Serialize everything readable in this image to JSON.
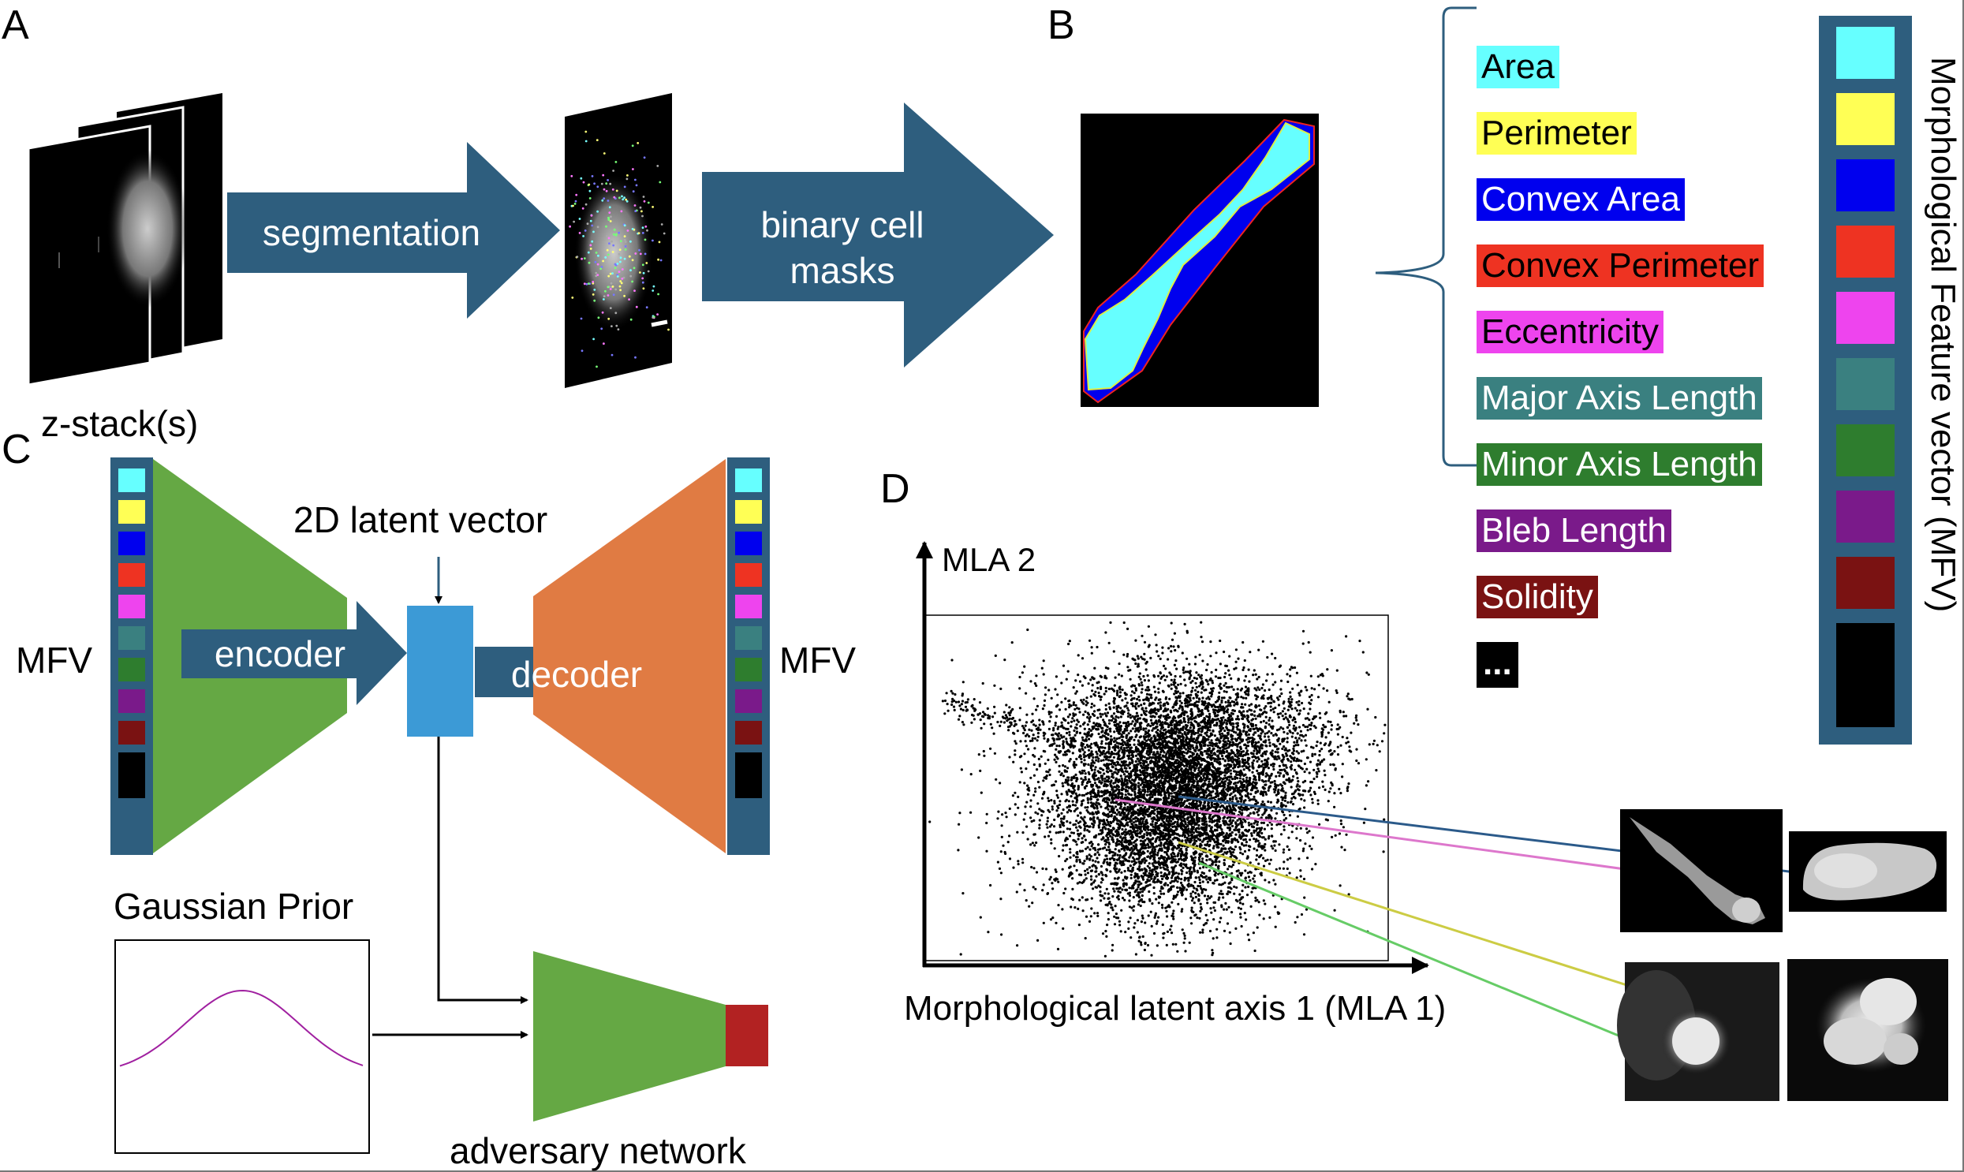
{
  "panels": {
    "a": "A",
    "b": "B",
    "c": "C",
    "d": "D"
  },
  "panel_a": {
    "stack_label": "z-stack(s)",
    "arrow1_label": "segmentation",
    "arrow2_label_line1": "binary cell",
    "arrow2_label_line2": "masks"
  },
  "panel_b": {
    "features": [
      {
        "label": "Area",
        "bg": "#66ffff",
        "fg": "#000000"
      },
      {
        "label": "Perimeter",
        "bg": "#ffff55",
        "fg": "#000000"
      },
      {
        "label": "Convex Area",
        "bg": "#0000ee",
        "fg": "#ffffff"
      },
      {
        "label": "Convex Perimeter",
        "bg": "#ee3322",
        "fg": "#000000"
      },
      {
        "label": "Eccentricity",
        "bg": "#ee44ee",
        "fg": "#000000"
      },
      {
        "label": "Major Axis Length",
        "bg": "#3a8080",
        "fg": "#ffffff"
      },
      {
        "label": "Minor Axis Length",
        "bg": "#2e7d2e",
        "fg": "#ffffff"
      },
      {
        "label": "Bleb Length",
        "bg": "#7a1a8a",
        "fg": "#ffffff"
      },
      {
        "label": "Solidity",
        "bg": "#7a1212",
        "fg": "#ffffff"
      },
      {
        "label": "...",
        "bg": "#000000",
        "fg": "#ffffff"
      }
    ],
    "vector_title": "Morphological Feature vector (MFV)"
  },
  "panel_c": {
    "latent_label": "2D latent vector",
    "encoder_label": "encoder",
    "decoder_label": "decoder",
    "mfv_left": "MFV",
    "mfv_right": "MFV",
    "prior_label": "Gaussian Prior",
    "adversary_label": "adversary network",
    "colors": {
      "encoder": "#65a844",
      "decoder": "#e07b43",
      "latent": "#3c9ad6",
      "arrow": "#2e5e7e",
      "adversary_out": "#b22222"
    }
  },
  "panel_d": {
    "y_axis_label": "MLA 2",
    "x_axis_label": "Morphological latent axis 1 (MLA 1)",
    "link_colors": [
      "#2b5a8a",
      "#dd77cc",
      "#cccc44",
      "#66cc66"
    ]
  }
}
